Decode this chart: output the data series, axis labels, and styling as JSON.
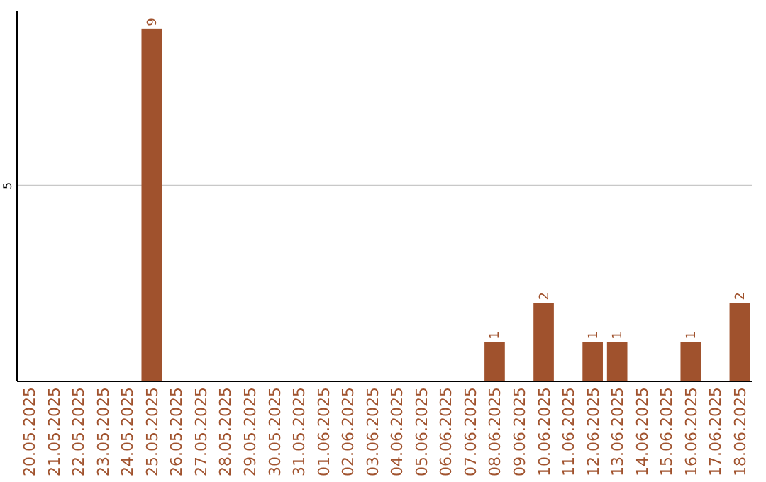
{
  "chart_data": {
    "type": "bar",
    "categories": [
      "20.05.2025",
      "21.05.2025",
      "22.05.2025",
      "23.05.2025",
      "24.05.2025",
      "25.05.2025",
      "26.05.2025",
      "27.05.2025",
      "28.05.2025",
      "29.05.2025",
      "30.05.2025",
      "31.05.2025",
      "01.06.2025",
      "02.06.2025",
      "03.06.2025",
      "04.06.2025",
      "05.06.2025",
      "06.06.2025",
      "07.06.2025",
      "08.06.2025",
      "09.06.2025",
      "10.06.2025",
      "11.06.2025",
      "12.06.2025",
      "13.06.2025",
      "14.06.2025",
      "15.06.2025",
      "16.06.2025",
      "17.06.2025",
      "18.06.2025"
    ],
    "values": [
      null,
      null,
      null,
      null,
      null,
      9,
      null,
      null,
      null,
      null,
      null,
      null,
      null,
      null,
      null,
      null,
      null,
      null,
      null,
      1,
      null,
      2,
      null,
      1,
      1,
      null,
      null,
      1,
      null,
      2
    ],
    "color": "#a0522d",
    "ylim": [
      0,
      9.45
    ],
    "yticks": [
      5
    ],
    "grid": "y",
    "data_labels": true
  }
}
